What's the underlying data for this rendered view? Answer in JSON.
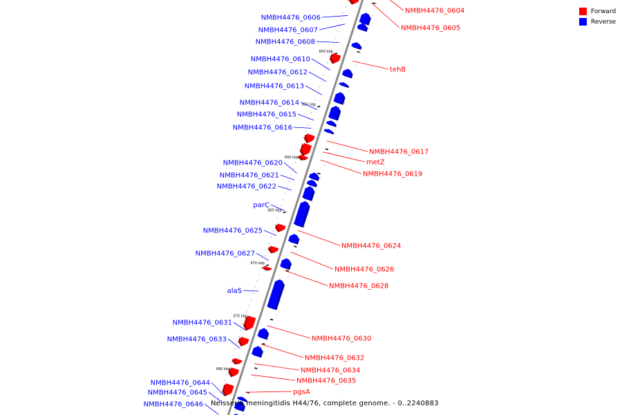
{
  "legend": {
    "forward": {
      "label": "Forward",
      "color": "#ff0000"
    },
    "reverse": {
      "label": "Reverse",
      "color": "#0000ff"
    }
  },
  "caption": "Neisseria meningitidis H44/76, complete genome. - 0..2240883",
  "ticks": [
    {
      "label": "650 kbp",
      "kbp": 650
    },
    {
      "label": "655 kbp",
      "kbp": 655
    },
    {
      "label": "660 kbp",
      "kbp": 660
    },
    {
      "label": "665 kbp",
      "kbp": 665
    },
    {
      "label": "670 kbp",
      "kbp": 670
    },
    {
      "label": "675 kbp",
      "kbp": 675
    },
    {
      "label": "680 kbp",
      "kbp": 680
    }
  ],
  "genes": [
    {
      "name": "NMBH4476_0604",
      "strand": "forward",
      "start_kbp": 643.2,
      "end_kbp": 644.8
    },
    {
      "name": "NMBH4476_0605",
      "strand": "forward",
      "start_kbp": 645.0,
      "end_kbp": 645.6
    },
    {
      "name": "NMBH4476_0606",
      "strand": "reverse",
      "start_kbp": 646.0,
      "end_kbp": 647.0
    },
    {
      "name": "NMBH4476_0607",
      "strand": "reverse",
      "start_kbp": 647.0,
      "end_kbp": 647.6
    },
    {
      "name": "NMBH4476_0608",
      "strand": "reverse",
      "start_kbp": 648.8,
      "end_kbp": 649.3
    },
    {
      "name": "tehB",
      "strand": "forward",
      "start_kbp": 650.4,
      "end_kbp": 651.2
    },
    {
      "name": "NMBH4476_0610",
      "strand": "reverse",
      "start_kbp": 651.3,
      "end_kbp": 652.0
    },
    {
      "name": "NMBH4476_0612",
      "strand": "reverse",
      "start_kbp": 652.6,
      "end_kbp": 652.9
    },
    {
      "name": "NMBH4476_0613",
      "strand": "reverse",
      "start_kbp": 653.5,
      "end_kbp": 654.5
    },
    {
      "name": "NMBH4476_0614",
      "strand": "reverse",
      "start_kbp": 654.8,
      "end_kbp": 656.0
    },
    {
      "name": "NMBH4476_0615",
      "strand": "reverse",
      "start_kbp": 656.2,
      "end_kbp": 656.6
    },
    {
      "name": "NMBH4476_0616",
      "strand": "reverse",
      "start_kbp": 657.0,
      "end_kbp": 657.3
    },
    {
      "name": "NMBH4476_0617",
      "strand": "forward",
      "start_kbp": 658.0,
      "end_kbp": 658.7
    },
    {
      "name": "metZ",
      "strand": "forward",
      "start_kbp": 658.9,
      "end_kbp": 659.9
    },
    {
      "name": "NMBH4476_0619",
      "strand": "forward",
      "start_kbp": 660.0,
      "end_kbp": 660.3
    },
    {
      "name": "NMBH4476_0620",
      "strand": "reverse",
      "start_kbp": 661.1,
      "end_kbp": 661.7
    },
    {
      "name": "NMBH4476_0621",
      "strand": "reverse",
      "start_kbp": 661.8,
      "end_kbp": 662.3
    },
    {
      "name": "NMBH4476_0622",
      "strand": "reverse",
      "start_kbp": 662.4,
      "end_kbp": 663.6
    },
    {
      "name": "parC",
      "strand": "reverse",
      "start_kbp": 663.8,
      "end_kbp": 666.1
    },
    {
      "name": "NMBH4476_0624",
      "strand": "forward",
      "start_kbp": 666.5,
      "end_kbp": 667.1
    },
    {
      "name": "NMBH4476_0625",
      "strand": "reverse",
      "start_kbp": 666.9,
      "end_kbp": 667.7
    },
    {
      "name": "NMBH4476_0626",
      "strand": "forward",
      "start_kbp": 668.6,
      "end_kbp": 669.1
    },
    {
      "name": "NMBH4476_0627",
      "strand": "reverse",
      "start_kbp": 669.2,
      "end_kbp": 670.1
    },
    {
      "name": "NMBH4476_0628",
      "strand": "forward",
      "start_kbp": 670.5,
      "end_kbp": 670.7
    },
    {
      "name": "alaS",
      "strand": "reverse",
      "start_kbp": 671.2,
      "end_kbp": 673.9
    },
    {
      "name": "NMBH4476_0630",
      "strand": "forward",
      "start_kbp": 675.2,
      "end_kbp": 676.4
    },
    {
      "name": "NMBH4476_0631",
      "strand": "reverse",
      "start_kbp": 675.8,
      "end_kbp": 676.7
    },
    {
      "name": "NMBH4476_0632",
      "strand": "forward",
      "start_kbp": 677.2,
      "end_kbp": 677.9
    },
    {
      "name": "NMBH4476_0633",
      "strand": "reverse",
      "start_kbp": 677.5,
      "end_kbp": 678.4
    },
    {
      "name": "NMBH4476_0634",
      "strand": "forward",
      "start_kbp": 679.2,
      "end_kbp": 679.6
    },
    {
      "name": "NMBH4476_0635",
      "strand": "forward",
      "start_kbp": 680.1,
      "end_kbp": 680.8
    },
    {
      "name": "pgsA",
      "strand": "forward",
      "start_kbp": 681.6,
      "end_kbp": 682.6
    },
    {
      "name": "NMBH4476_0644",
      "strand": "reverse",
      "start_kbp": 682.3,
      "end_kbp": 682.6
    },
    {
      "name": "NMBH4476_0645",
      "strand": "reverse",
      "start_kbp": 682.7,
      "end_kbp": 683.5
    },
    {
      "name": "NMBH4476_0646",
      "strand": "reverse",
      "start_kbp": 683.9,
      "end_kbp": 684.5
    }
  ]
}
